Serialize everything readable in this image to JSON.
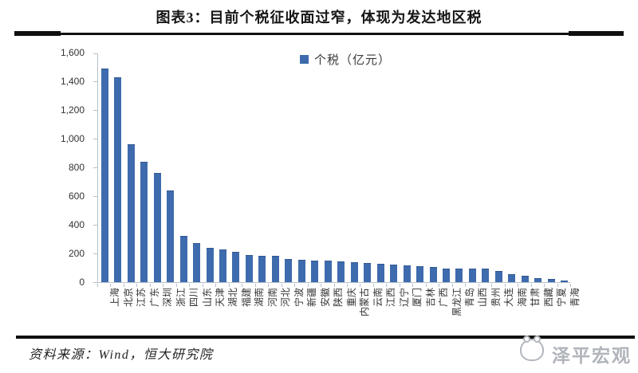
{
  "title": "图表3：目前个税征收面过窄，体现为发达地区税",
  "legend": {
    "label": "个税（亿元）"
  },
  "footer": {
    "source": "资料来源：Wind，恒大研究院"
  },
  "watermark": {
    "text": "泽平宏观"
  },
  "colors": {
    "bar": "#3e6bad",
    "bar_edge": "#2f578f",
    "axis": "#b7c0ca",
    "title": "#161616",
    "rule": "#101010",
    "watermark": "#b0b4ba"
  },
  "chart_data": {
    "type": "bar",
    "title": "图表3：目前个税征收面过窄，体现为发达地区税",
    "legend": [
      "个税（亿元）"
    ],
    "legend_position": "top-center",
    "unit": "亿元",
    "grid": false,
    "ylim": [
      0,
      1600
    ],
    "ytick_step": 200,
    "ytick_labels": [
      "0",
      "200",
      "400",
      "600",
      "800",
      "1,000",
      "1,200",
      "1,400",
      "1,600"
    ],
    "categories": [
      "上海",
      "北京",
      "江苏",
      "广东",
      "深圳",
      "浙江",
      "四川",
      "山东",
      "天津",
      "湖北",
      "福建",
      "湖南",
      "河南",
      "河北",
      "宁波",
      "新疆",
      "安徽",
      "陕西",
      "重庆",
      "内蒙古",
      "云南",
      "江西",
      "辽宁",
      "厦门",
      "吉林",
      "广西",
      "黑龙江",
      "青岛",
      "山西",
      "贵州",
      "大连",
      "海南",
      "甘肃",
      "西藏",
      "宁夏",
      "青海"
    ],
    "values": [
      1490,
      1430,
      960,
      840,
      760,
      640,
      325,
      270,
      240,
      230,
      210,
      190,
      185,
      182,
      163,
      154,
      150,
      150,
      145,
      137,
      135,
      130,
      120,
      115,
      110,
      108,
      97,
      93,
      93,
      92,
      80,
      55,
      45,
      30,
      20,
      12
    ]
  }
}
